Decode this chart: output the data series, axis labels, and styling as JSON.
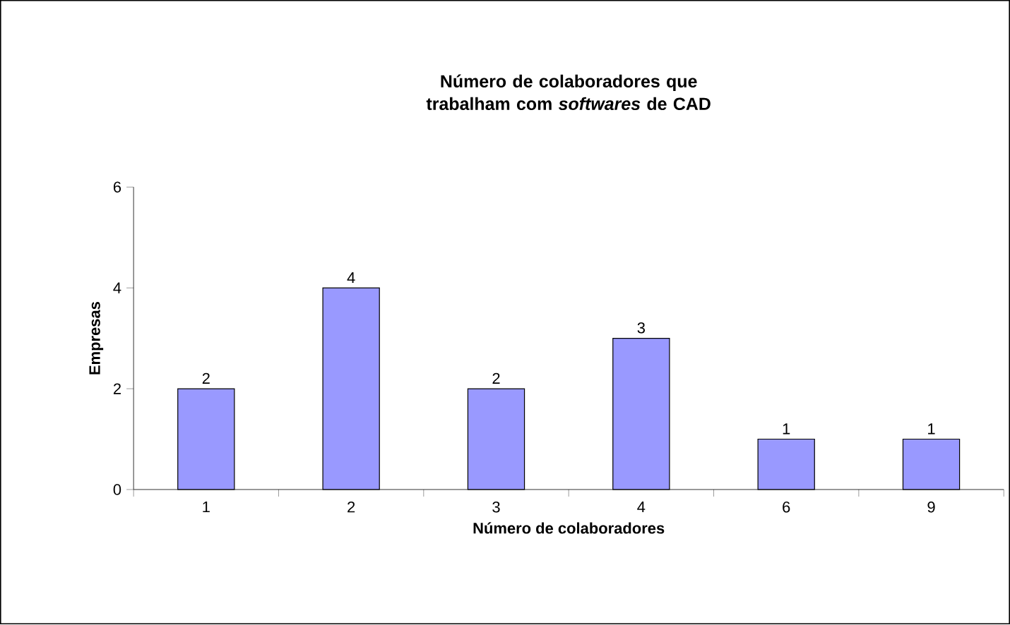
{
  "chart_data": {
    "type": "bar",
    "title": "Número de colaboradores que trabalham com *softwares* de CAD",
    "xlabel": "Número de colaboradores",
    "ylabel": "Empresas",
    "categories": [
      "1",
      "2",
      "3",
      "4",
      "6",
      "9"
    ],
    "values": [
      2,
      4,
      2,
      3,
      1,
      1
    ],
    "color": "#9999ff",
    "ylim": [
      0,
      6
    ],
    "yticks": [
      0,
      2,
      4,
      6
    ],
    "data_labels": true
  }
}
